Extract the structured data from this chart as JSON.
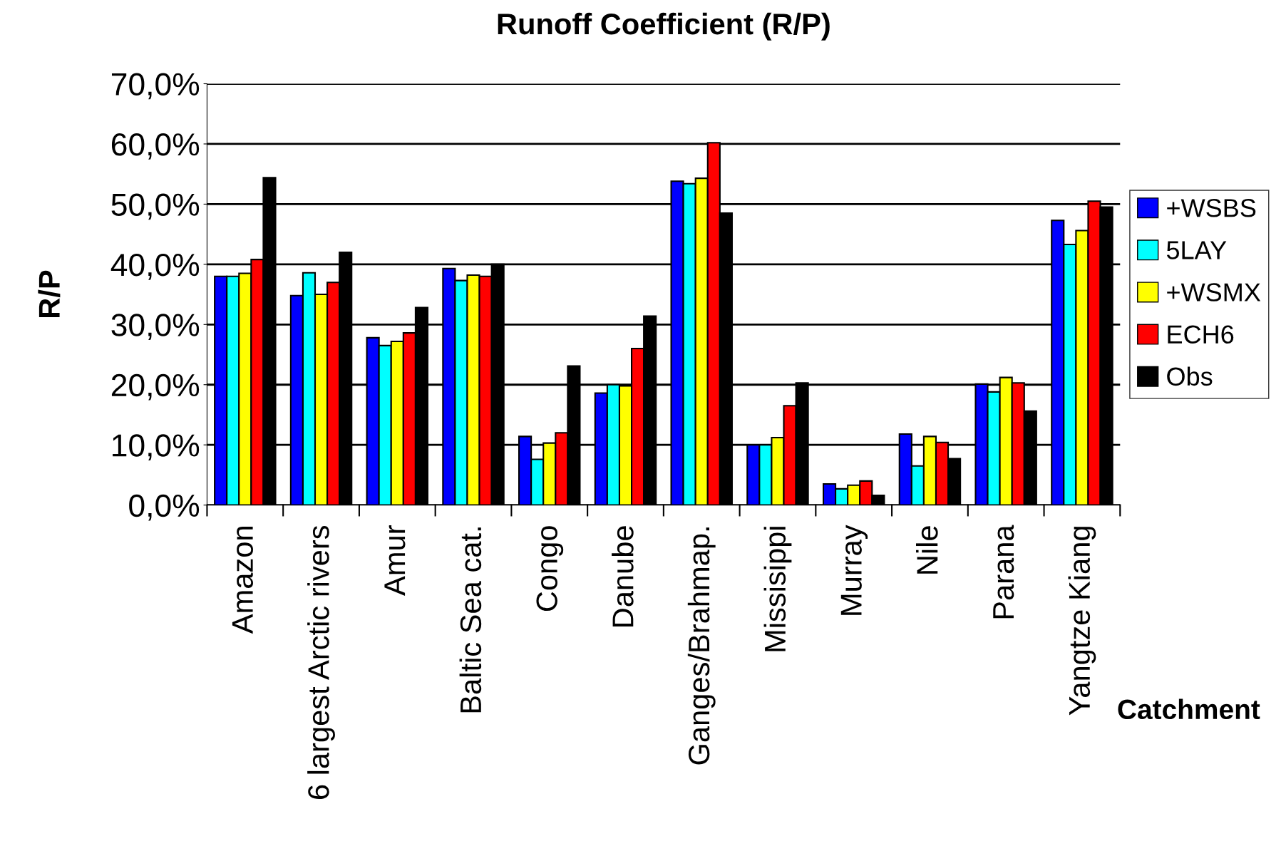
{
  "chart_data": {
    "type": "bar",
    "title": "Runoff Coefficient (R/P)",
    "xlabel": "Catchment",
    "ylabel": "R/P",
    "categories": [
      "Amazon",
      "6 largest Arctic rivers",
      "Amur",
      "Baltic Sea cat.",
      "Congo",
      "Danube",
      "Ganges/Brahmap.",
      "Missisippi",
      "Murray",
      "Nile",
      "Parana",
      "Yangtze Kiang"
    ],
    "series": [
      {
        "name": "+WSBS",
        "color": "#0000ff",
        "values": [
          38,
          34.8,
          27.8,
          39.3,
          11.4,
          18.6,
          53.8,
          10,
          3.5,
          11.8,
          20.1,
          47.3
        ]
      },
      {
        "name": "5LAY",
        "color": "#00ffff",
        "values": [
          38,
          38.6,
          26.5,
          37.3,
          7.6,
          20,
          53.4,
          10,
          2.7,
          6.5,
          18.8,
          43.3
        ]
      },
      {
        "name": "+WSMX",
        "color": "#ffff00",
        "values": [
          38.5,
          35,
          27.2,
          38.2,
          10.3,
          19.8,
          54.3,
          11.2,
          3.3,
          11.4,
          21.2,
          45.6
        ]
      },
      {
        "name": "ECH6",
        "color": "#ff0000",
        "values": [
          40.8,
          37,
          28.6,
          38,
          12,
          26,
          60.2,
          16.5,
          4,
          10.4,
          20.3,
          50.5
        ]
      },
      {
        "name": "Obs",
        "color": "#000000",
        "values": [
          54.4,
          42,
          32.8,
          40,
          23.1,
          31.4,
          48.5,
          20.3,
          1.6,
          7.7,
          15.6,
          49.5
        ]
      }
    ],
    "ylim": [
      0,
      70
    ],
    "yticks": [
      {
        "value": 0,
        "label": "0,0%"
      },
      {
        "value": 10,
        "label": "10,0%"
      },
      {
        "value": 20,
        "label": "20,0%"
      },
      {
        "value": 30,
        "label": "30,0%"
      },
      {
        "value": 40,
        "label": "40,0%"
      },
      {
        "value": 50,
        "label": "50,0%"
      },
      {
        "value": 60,
        "label": "60,0%"
      },
      {
        "value": 70,
        "label": "70,0%"
      }
    ],
    "grid": "y",
    "legend": "right"
  }
}
